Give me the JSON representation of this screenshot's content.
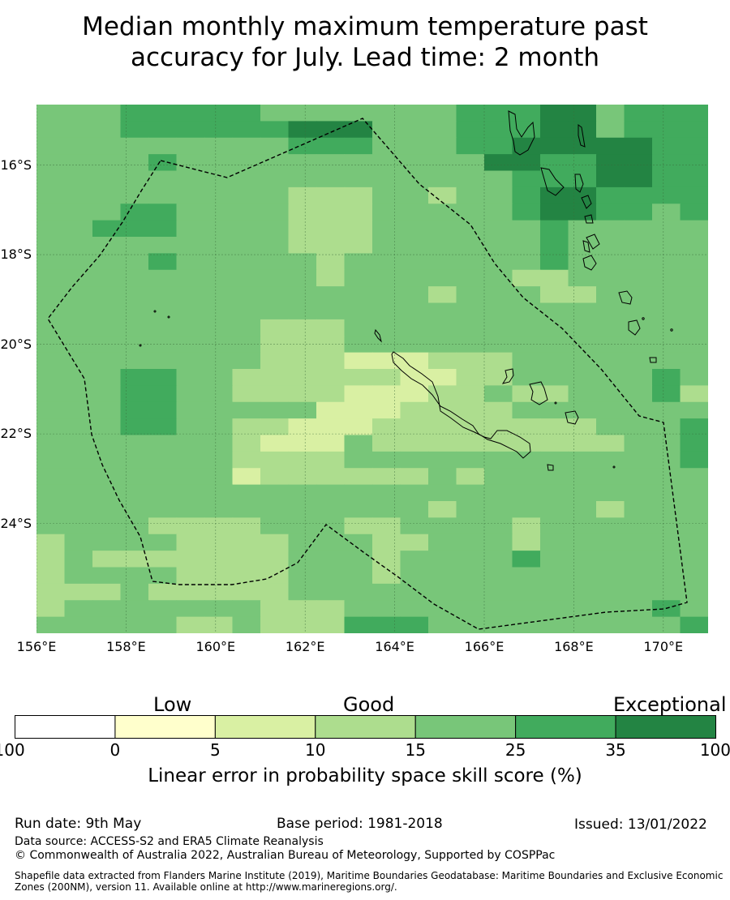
{
  "title_line1": "Median monthly maximum temperature past",
  "title_line2": "accuracy for July. Lead time: 2 month",
  "map": {
    "lon_range": [
      156,
      171
    ],
    "lat_range": [
      -14.65,
      -26.45
    ],
    "cell_size_deg": 0.833,
    "lon_ticks": [
      "156°E",
      "158°E",
      "160°E",
      "162°E",
      "164°E",
      "166°E",
      "168°E",
      "170°E"
    ],
    "lat_ticks": [
      "16°S",
      "18°S",
      "20°S",
      "22°S",
      "24°S"
    ],
    "gridlines": true,
    "grid_color": "#3a6b3a",
    "eez_boundary_style": "dashed black",
    "category_colors": [
      "#ffffcc",
      "#d9f0a3",
      "#addd8e",
      "#78c679",
      "#41ab5d",
      "#238443"
    ],
    "grid": [
      "333444443333333444553444",
      "333444444555333444553444",
      "333333333444333445555544",
      "333343333333333355445544",
      "333333333333333334445544",
      "333333333222332334554444",
      "333443333222333334554434",
      "334443333222333333433333",
      "333333333222333333433333",
      "333343333323333333433333",
      "333333333323333332233333",
      "333333333333332333223333",
      "333333333333333333333333",
      "333333332223333333333333",
      "333333332223333333333333",
      "333333332221112223333333",
      "333443322222211223333343",
      "333443322221112232233342",
      "333443333311122223333333",
      "333443322111222222223334",
      "333333321113222222222334",
      "333333322223333333333334",
      "333333312222223233333333",
      "333333333333333333333333",
      "333333333333332333332333",
      "333322223332233332333333",
      "233332222333223332333333",
      "232222222333233334333333",
      "233332222333233333333333",
      "222322222333333333333333",
      "233333332223333333333343",
      "333332232224443333333334"
    ]
  },
  "colorbar": {
    "categories": [
      "Low",
      "Good",
      "Exceptional"
    ],
    "tick_labels": [
      "-100",
      "0",
      "5",
      "10",
      "15",
      "25",
      "35",
      "100"
    ],
    "colors": [
      "#ffffff",
      "#ffffcc",
      "#d9f0a3",
      "#addd8e",
      "#78c679",
      "#41ab5d",
      "#238443"
    ],
    "label": "Linear error in probability space skill score (%)"
  },
  "footer": {
    "run_date": "Run date: 9th May",
    "base_period": "Base period: 1981-2018",
    "issued": "Issued: 13/01/2022",
    "data_source": "Data source: ACCESS-S2 and ERA5 Climate Reanalysis",
    "copyright": "© Commonwealth of Australia 2022, Australian Bureau of Meteorology, Supported by COSPPac",
    "shapefile_note": "Shapefile data extracted from Flanders Marine Institute (2019), Maritime Boundaries Geodatabase: Maritime Boundaries and Exclusive Economic Zones (200NM), version 11. Available online at http://www.marineregions.org/."
  }
}
